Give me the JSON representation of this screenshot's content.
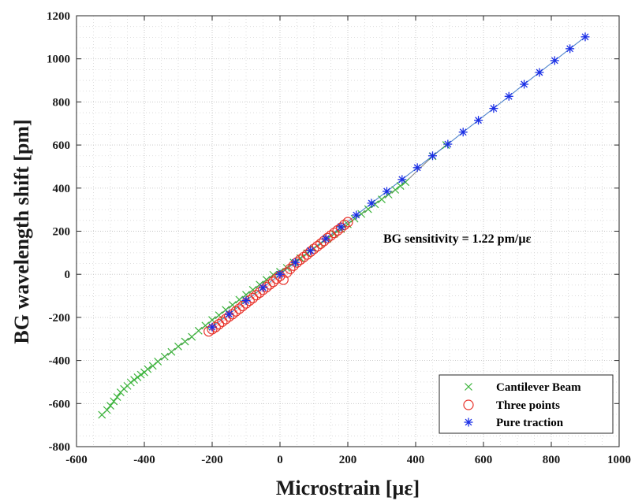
{
  "chart_data": {
    "type": "scatter",
    "title": "",
    "xlabel": "Microstrain [µε]",
    "ylabel": "BG wavelength shift [pm]",
    "xlim": [
      -600,
      1000
    ],
    "ylim": [
      -800,
      1200
    ],
    "xticks": [
      -600,
      -400,
      -200,
      0,
      200,
      400,
      600,
      800,
      1000
    ],
    "yticks": [
      -800,
      -600,
      -400,
      -200,
      0,
      200,
      400,
      600,
      800,
      1000,
      1200
    ],
    "grid": true,
    "minor_grid": true,
    "legend_position": "bottom-right",
    "annotation": "BG sensitivity = 1.22 pm/µε",
    "colors": {
      "cantilever": "#3cb43c",
      "three_points": "#e8322a",
      "traction": "#1a2ee6",
      "fit_cantilever": "#7a7a7a",
      "fit_traction": "#3c78c8"
    },
    "series": [
      {
        "name": "Cantilever Beam",
        "marker": "x",
        "x": [
          -525,
          -510,
          -500,
          -490,
          -480,
          -470,
          -460,
          -450,
          -440,
          -430,
          -420,
          -410,
          -400,
          -390,
          -375,
          -360,
          -340,
          -320,
          -300,
          -280,
          -260,
          -240,
          -220,
          -200,
          -180,
          -160,
          -140,
          -120,
          -100,
          -80,
          -60,
          -40,
          -20,
          0,
          20,
          40,
          60,
          80,
          100,
          120,
          140,
          160,
          180,
          200,
          220,
          240,
          260,
          280,
          300,
          320,
          340,
          355,
          370,
          450,
          490
        ],
        "y": [
          -652,
          -630,
          -610,
          -590,
          -570,
          -548,
          -532,
          -518,
          -502,
          -490,
          -478,
          -466,
          -455,
          -440,
          -425,
          -405,
          -382,
          -360,
          -335,
          -312,
          -290,
          -262,
          -238,
          -212,
          -190,
          -165,
          -142,
          -118,
          -95,
          -72,
          -48,
          -25,
          -2,
          12,
          30,
          55,
          75,
          98,
          120,
          142,
          165,
          188,
          210,
          232,
          258,
          280,
          302,
          325,
          348,
          370,
          392,
          410,
          428,
          548,
          600
        ]
      },
      {
        "name": "Three points",
        "marker": "o",
        "x": [
          -210,
          -200,
          -190,
          -180,
          -170,
          -160,
          -150,
          -140,
          -130,
          -120,
          -110,
          -100,
          -90,
          -80,
          -70,
          -60,
          -50,
          -40,
          -30,
          -20,
          -10,
          0,
          10,
          20,
          30,
          40,
          50,
          60,
          70,
          80,
          90,
          100,
          110,
          120,
          130,
          140,
          150,
          160,
          170,
          180,
          190,
          200
        ],
        "y": [
          -265,
          -255,
          -245,
          -232,
          -220,
          -208,
          -196,
          -185,
          -172,
          -160,
          -147,
          -135,
          -122,
          -110,
          -97,
          -85,
          -72,
          -60,
          -47,
          -35,
          -20,
          -8,
          -25,
          8,
          25,
          40,
          55,
          68,
          80,
          92,
          105,
          118,
          130,
          142,
          155,
          168,
          180,
          192,
          204,
          216,
          230,
          242
        ]
      },
      {
        "name": "Pure traction",
        "marker": "*",
        "x": [
          -200,
          -150,
          -100,
          -50,
          0,
          45,
          90,
          135,
          180,
          225,
          270,
          315,
          360,
          405,
          450,
          495,
          540,
          585,
          630,
          675,
          720,
          765,
          810,
          855,
          900
        ],
        "y": [
          -245,
          -185,
          -122,
          -62,
          0,
          55,
          110,
          165,
          220,
          275,
          330,
          385,
          440,
          495,
          550,
          604,
          660,
          715,
          770,
          826,
          882,
          937,
          992,
          1047,
          1102
        ]
      }
    ]
  }
}
